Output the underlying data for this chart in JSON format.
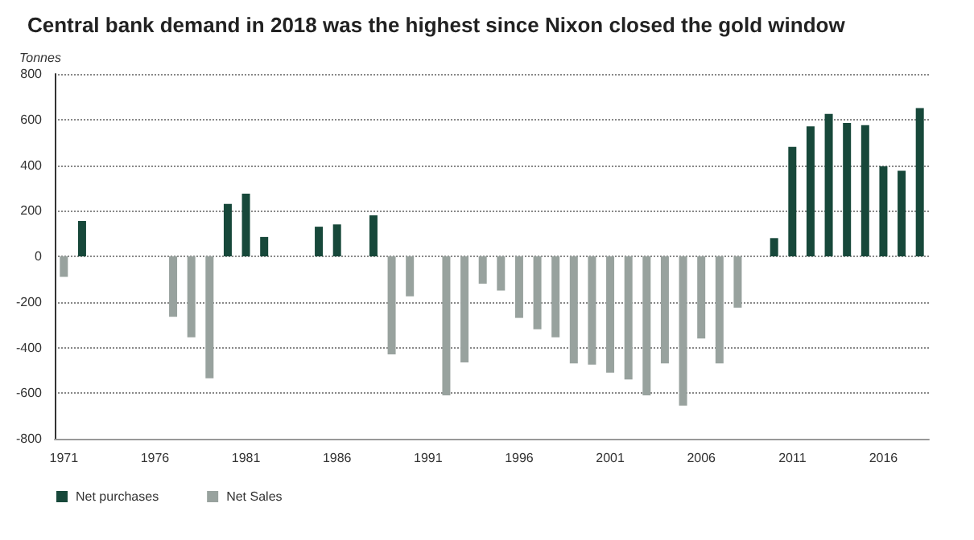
{
  "chart_data": {
    "type": "bar",
    "stacked": true,
    "title": "Central bank demand in 2018 was the highest since Nixon closed the gold window",
    "ylabel": "Tonnes",
    "categories": [
      "1971",
      null,
      null,
      null,
      null,
      "1976",
      null,
      null,
      null,
      null,
      "1981",
      null,
      null,
      null,
      null,
      "1986",
      null,
      null,
      null,
      null,
      "1991",
      null,
      null,
      null,
      null,
      "1996",
      null,
      null,
      null,
      null,
      "2001",
      null,
      null,
      null,
      null,
      "2006",
      null,
      null,
      null,
      null,
      "2011",
      null,
      null,
      null,
      null,
      "2016",
      null,
      null
    ],
    "series": [
      {
        "name": "Net purchases",
        "color": "#17483a",
        "values": [
          null,
          155,
          null,
          null,
          null,
          null,
          null,
          null,
          null,
          230,
          275,
          85,
          null,
          null,
          130,
          140,
          null,
          180,
          null,
          null,
          null,
          null,
          null,
          null,
          null,
          null,
          null,
          null,
          null,
          null,
          null,
          null,
          null,
          null,
          null,
          null,
          null,
          null,
          null,
          80,
          480,
          570,
          625,
          585,
          575,
          395,
          375,
          650
        ]
      },
      {
        "name": "Net Sales",
        "color": "#98a29e",
        "values": [
          -90,
          null,
          null,
          null,
          null,
          null,
          -265,
          -355,
          -535,
          null,
          null,
          null,
          null,
          null,
          null,
          null,
          null,
          null,
          -430,
          -175,
          null,
          -610,
          -465,
          -120,
          -150,
          -270,
          -320,
          -355,
          -470,
          -475,
          -510,
          -540,
          -610,
          -470,
          -655,
          -360,
          -470,
          -225,
          null,
          null,
          null,
          null,
          null,
          null,
          null,
          null,
          null,
          null
        ]
      }
    ],
    "ylim": [
      -800,
      800
    ],
    "yticks": [
      -800,
      -600,
      -400,
      -200,
      0,
      200,
      400,
      600,
      800
    ],
    "grid": "y",
    "legend": "bottom left"
  }
}
